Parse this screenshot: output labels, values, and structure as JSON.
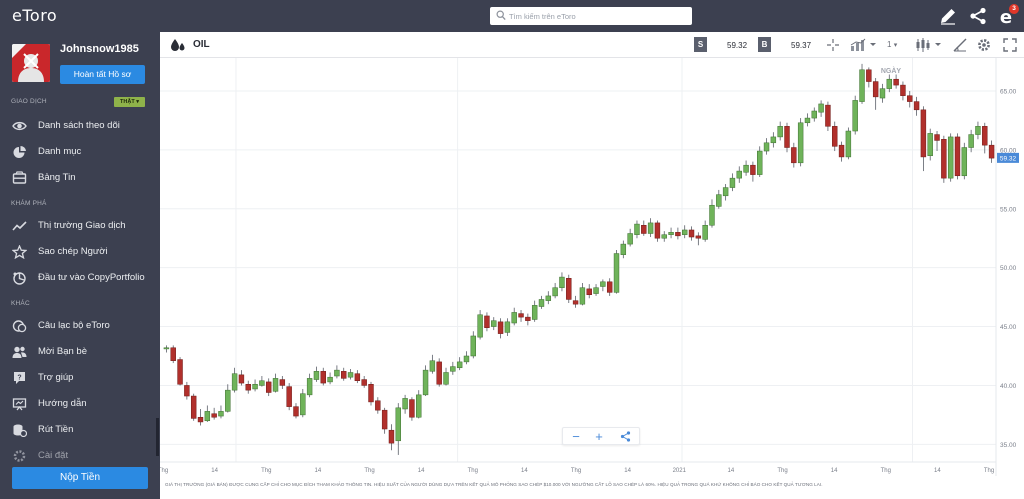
{
  "brand": {
    "logo_text": "eToro",
    "primary_color": "#2b8ae2",
    "sidebar_bg": "#3c4050",
    "up_color": "#6fb35a",
    "down_color": "#b1302c"
  },
  "user": {
    "username": "Johnsnow1985",
    "complete_profile_label": "Hoàn tất Hồ sơ"
  },
  "sidebar": {
    "trading_section": "GIAO DỊCH",
    "mode_badge": "THẬT",
    "trading_items": [
      {
        "label": "Danh sách theo dõi",
        "icon": "eye-icon"
      },
      {
        "label": "Danh mục",
        "icon": "pie-chart-icon"
      },
      {
        "label": "Bảng Tin",
        "icon": "news-icon"
      }
    ],
    "discover_section": "KHÁM PHÁ",
    "discover_items": [
      {
        "label": "Thị trường Giao dịch",
        "icon": "trend-icon"
      },
      {
        "label": "Sao chép Người",
        "icon": "star-icon"
      },
      {
        "label": "Đầu tư vào CopyPortfolio",
        "icon": "portfolio-icon"
      }
    ],
    "other_section": "KHÁC",
    "other_items": [
      {
        "label": "Câu lạc bộ eToro",
        "icon": "club-icon"
      },
      {
        "label": "Mời Bạn bè",
        "icon": "invite-icon"
      },
      {
        "label": "Trợ giúp",
        "icon": "help-icon"
      },
      {
        "label": "Hướng dẫn",
        "icon": "guide-icon"
      },
      {
        "label": "Rút Tiền",
        "icon": "withdraw-icon"
      },
      {
        "label": "Cài đặt",
        "icon": "settings-icon"
      }
    ],
    "deposit_label": "Nộp Tiền"
  },
  "topbar": {
    "search_placeholder": "Tìm kiếm trên eToro",
    "notification_count": "3"
  },
  "instrument": {
    "name": "OIL",
    "sell_label": "S",
    "sell_price": "59.32",
    "buy_label": "B",
    "buy_price": "59.37",
    "period_value": "1"
  },
  "chart_data": {
    "type": "candlestick",
    "timeframe_label": "NGÀY",
    "current_price_label": "59.32",
    "y_ticks": [
      "65.00",
      "60.00",
      "55.00",
      "50.00",
      "45.00",
      "40.00",
      "35.00"
    ],
    "ylim": [
      33.5,
      67.8
    ],
    "x_ticks": [
      "Thg",
      "14",
      "Thg",
      "14",
      "Thg",
      "14",
      "Thg",
      "14",
      "Thg",
      "14",
      "2021",
      "14",
      "Thg",
      "14",
      "Thg",
      "14",
      "Thg"
    ],
    "candles": [
      [
        43.1,
        43.2,
        43.4,
        42.8
      ],
      [
        43.2,
        42.1,
        43.4,
        41.9
      ],
      [
        42.2,
        40.1,
        42.4,
        40.0
      ],
      [
        40.0,
        39.1,
        40.3,
        38.8
      ],
      [
        39.1,
        37.2,
        39.3,
        37.0
      ],
      [
        37.3,
        36.9,
        38.0,
        36.6
      ],
      [
        37.0,
        37.8,
        38.3,
        36.9
      ],
      [
        37.6,
        37.3,
        38.1,
        37.1
      ],
      [
        37.4,
        37.8,
        38.3,
        37.2
      ],
      [
        37.8,
        39.6,
        40.1,
        37.7
      ],
      [
        39.6,
        41.0,
        41.5,
        39.4
      ],
      [
        40.9,
        40.2,
        41.3,
        40.0
      ],
      [
        40.1,
        39.6,
        40.4,
        39.3
      ],
      [
        39.7,
        40.1,
        40.5,
        39.5
      ],
      [
        40.0,
        40.4,
        40.8,
        39.9
      ],
      [
        40.3,
        39.4,
        40.6,
        39.1
      ],
      [
        39.5,
        40.6,
        41.0,
        39.4
      ],
      [
        40.5,
        40.0,
        40.8,
        39.7
      ],
      [
        39.9,
        38.2,
        40.2,
        37.9
      ],
      [
        38.2,
        37.4,
        38.5,
        37.2
      ],
      [
        37.5,
        39.3,
        39.7,
        37.3
      ],
      [
        39.2,
        40.6,
        41.0,
        39.0
      ],
      [
        40.5,
        41.2,
        41.6,
        40.3
      ],
      [
        41.2,
        40.2,
        41.5,
        40.0
      ],
      [
        40.3,
        40.7,
        41.1,
        40.1
      ],
      [
        40.8,
        41.3,
        41.7,
        40.6
      ],
      [
        41.2,
        40.6,
        41.5,
        40.4
      ],
      [
        40.7,
        41.1,
        41.4,
        40.5
      ],
      [
        41.0,
        40.4,
        41.3,
        40.2
      ],
      [
        40.5,
        40.0,
        40.8,
        39.8
      ],
      [
        40.1,
        38.6,
        40.3,
        38.3
      ],
      [
        38.7,
        37.9,
        39.0,
        37.6
      ],
      [
        37.9,
        36.3,
        38.1,
        35.9
      ],
      [
        36.2,
        35.1,
        36.7,
        34.5
      ],
      [
        35.3,
        38.1,
        38.5,
        34.1
      ],
      [
        38.0,
        38.9,
        39.2,
        37.6
      ],
      [
        38.8,
        37.3,
        39.0,
        37.0
      ],
      [
        37.3,
        39.2,
        39.6,
        37.2
      ],
      [
        39.2,
        41.3,
        41.7,
        39.1
      ],
      [
        41.2,
        42.1,
        42.6,
        41.0
      ],
      [
        42.0,
        40.1,
        42.3,
        39.9
      ],
      [
        40.1,
        41.1,
        41.5,
        40.0
      ],
      [
        41.2,
        41.6,
        42.0,
        40.9
      ],
      [
        41.5,
        42.0,
        42.4,
        41.3
      ],
      [
        42.0,
        42.5,
        42.9,
        41.8
      ],
      [
        42.5,
        44.2,
        44.6,
        42.3
      ],
      [
        44.1,
        46.0,
        46.4,
        43.9
      ],
      [
        45.9,
        44.9,
        46.2,
        44.6
      ],
      [
        45.0,
        45.5,
        45.8,
        44.7
      ],
      [
        45.4,
        44.4,
        45.7,
        44.0
      ],
      [
        44.5,
        45.4,
        45.7,
        44.2
      ],
      [
        45.3,
        46.2,
        46.6,
        45.1
      ],
      [
        46.1,
        45.8,
        46.4,
        45.4
      ],
      [
        45.8,
        45.5,
        46.1,
        45.1
      ],
      [
        45.6,
        46.8,
        47.2,
        45.4
      ],
      [
        46.7,
        47.3,
        47.6,
        46.5
      ],
      [
        47.2,
        47.6,
        48.0,
        46.9
      ],
      [
        47.6,
        48.3,
        48.7,
        47.4
      ],
      [
        48.3,
        49.2,
        49.6,
        48.0
      ],
      [
        49.1,
        47.3,
        49.4,
        47.0
      ],
      [
        47.2,
        46.9,
        47.6,
        46.6
      ],
      [
        46.9,
        48.3,
        48.7,
        46.8
      ],
      [
        48.2,
        47.7,
        48.6,
        47.4
      ],
      [
        47.8,
        48.3,
        48.6,
        47.6
      ],
      [
        48.4,
        48.8,
        49.0,
        48.0
      ],
      [
        48.8,
        47.9,
        49.1,
        47.6
      ],
      [
        47.9,
        51.2,
        51.5,
        47.8
      ],
      [
        51.1,
        52.0,
        52.3,
        50.8
      ],
      [
        52.0,
        52.9,
        53.3,
        51.8
      ],
      [
        52.8,
        53.7,
        54.0,
        52.5
      ],
      [
        53.6,
        52.9,
        54.0,
        52.7
      ],
      [
        52.9,
        53.8,
        54.2,
        52.6
      ],
      [
        53.8,
        52.5,
        54.0,
        52.2
      ],
      [
        52.5,
        52.8,
        53.1,
        52.2
      ],
      [
        52.8,
        53.0,
        53.4,
        52.5
      ],
      [
        53.0,
        52.7,
        53.4,
        52.4
      ],
      [
        52.8,
        53.2,
        53.6,
        52.5
      ],
      [
        53.2,
        52.6,
        53.5,
        52.3
      ],
      [
        52.7,
        52.5,
        53.0,
        51.9
      ],
      [
        52.4,
        53.6,
        54.0,
        52.2
      ],
      [
        53.6,
        55.3,
        55.8,
        53.4
      ],
      [
        55.2,
        56.2,
        56.6,
        55.0
      ],
      [
        56.1,
        56.8,
        57.1,
        55.7
      ],
      [
        56.8,
        57.6,
        58.0,
        56.5
      ],
      [
        57.6,
        58.2,
        58.6,
        57.2
      ],
      [
        58.1,
        58.7,
        59.1,
        57.8
      ],
      [
        58.7,
        57.9,
        59.0,
        57.3
      ],
      [
        57.9,
        59.9,
        60.3,
        57.7
      ],
      [
        59.9,
        60.6,
        61.0,
        59.6
      ],
      [
        60.6,
        61.1,
        61.5,
        60.2
      ],
      [
        61.1,
        62.0,
        62.4,
        60.8
      ],
      [
        62.0,
        60.2,
        62.3,
        59.8
      ],
      [
        60.2,
        58.9,
        60.6,
        58.5
      ],
      [
        58.9,
        62.3,
        62.7,
        58.6
      ],
      [
        62.3,
        62.7,
        63.1,
        62.0
      ],
      [
        62.7,
        63.3,
        63.6,
        62.4
      ],
      [
        63.2,
        63.9,
        64.2,
        62.8
      ],
      [
        63.8,
        62.0,
        64.1,
        61.6
      ],
      [
        62.0,
        60.3,
        62.4,
        59.9
      ],
      [
        60.4,
        59.4,
        60.7,
        59.0
      ],
      [
        59.4,
        61.6,
        61.9,
        59.2
      ],
      [
        61.6,
        64.2,
        64.6,
        61.3
      ],
      [
        64.1,
        66.8,
        67.3,
        63.9
      ],
      [
        66.8,
        65.8,
        67.0,
        65.3
      ],
      [
        65.8,
        64.5,
        66.1,
        63.4
      ],
      [
        64.4,
        65.2,
        65.6,
        64.0
      ],
      [
        65.2,
        66.0,
        66.4,
        64.9
      ],
      [
        66.0,
        65.5,
        66.4,
        65.2
      ],
      [
        65.5,
        64.6,
        65.8,
        64.2
      ],
      [
        64.6,
        64.1,
        65.0,
        63.6
      ],
      [
        64.1,
        63.4,
        64.5,
        62.9
      ],
      [
        63.4,
        59.4,
        63.7,
        58.2
      ],
      [
        59.5,
        61.4,
        61.8,
        59.1
      ],
      [
        61.3,
        60.8,
        61.6,
        59.9
      ],
      [
        60.9,
        57.6,
        61.2,
        57.2
      ],
      [
        57.6,
        61.1,
        61.4,
        57.3
      ],
      [
        61.1,
        57.8,
        61.4,
        57.5
      ],
      [
        57.8,
        60.2,
        60.6,
        57.5
      ],
      [
        60.2,
        61.3,
        61.7,
        59.8
      ],
      [
        61.3,
        62.0,
        62.4,
        60.9
      ],
      [
        62.0,
        60.4,
        62.3,
        59.7
      ],
      [
        60.4,
        59.3,
        60.8,
        58.9
      ]
    ]
  },
  "disclaimer": "GIÁ THỊ TRƯỜNG (GIÁ BÁN) ĐƯỢC CUNG CẤP CHỈ CHO MỤC ĐÍCH THAM KHẢO THÔNG TIN. HIỆU SUẤT CỦA NGƯỜI DÙNG DỰA TRÊN KẾT QUẢ MÔ PHỎNG SAO CHÉP $10.000 VỚI NGƯỠNG CẮT LỖ SAO CHÉP LÀ 60%. HIỆU QUẢ TRONG QUÁ KHỨ KHÔNG CHỈ BÁO CHO KẾT QUẢ TƯƠNG LAI."
}
